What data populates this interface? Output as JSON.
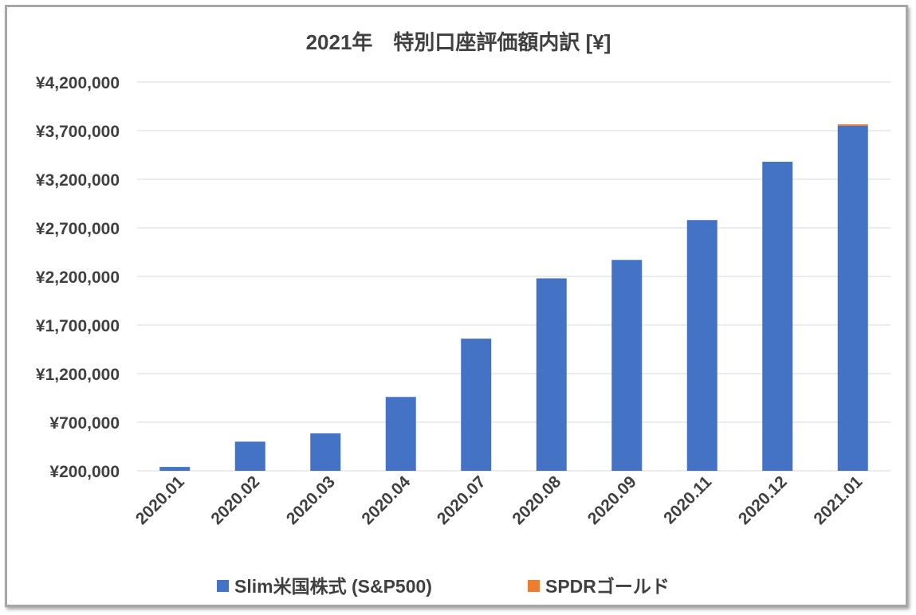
{
  "chart_data": {
    "type": "bar",
    "stacked": true,
    "title": "2021年　特別口座評価額内訳 [¥]",
    "xlabel": "",
    "ylabel": "",
    "ylim": [
      200000,
      4200000
    ],
    "yticks": [
      200000,
      700000,
      1200000,
      1700000,
      2200000,
      2700000,
      3200000,
      3700000,
      4200000
    ],
    "ytick_labels": [
      "¥200,000",
      "¥700,000",
      "¥1,200,000",
      "¥1,700,000",
      "¥2,200,000",
      "¥2,700,000",
      "¥3,200,000",
      "¥3,700,000",
      "¥4,200,000"
    ],
    "categories": [
      "2020.01",
      "2020.02",
      "2020.03",
      "2020.04",
      "2020.07",
      "2020.08",
      "2020.09",
      "2020.11",
      "2020.12",
      "2021.01"
    ],
    "series": [
      {
        "name": "Slim米国株式 (S&P500)",
        "color": "#4472c4",
        "values": [
          240000,
          500000,
          585000,
          960000,
          1560000,
          2180000,
          2370000,
          2780000,
          3380000,
          3750000
        ]
      },
      {
        "name": "SPDRゴールド",
        "color": "#ed7d31",
        "values": [
          0,
          0,
          0,
          0,
          0,
          0,
          0,
          0,
          0,
          15000
        ]
      }
    ],
    "grid": true,
    "legend": "bottom"
  }
}
